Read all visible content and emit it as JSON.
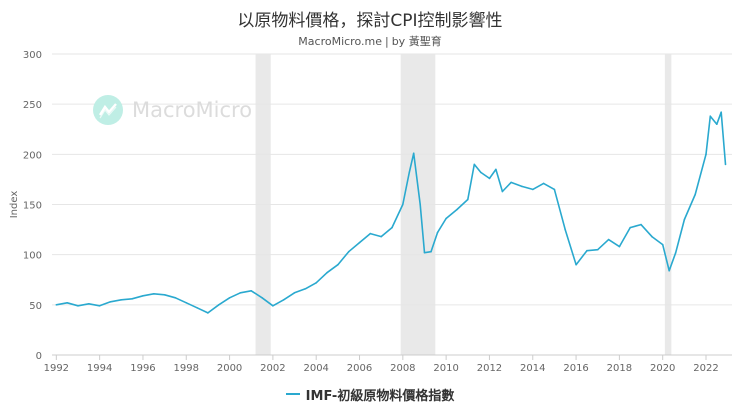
{
  "header": {
    "title": "以原物料價格，探討CPI控制影響性",
    "source": "MacroMicro.me",
    "separator": "|",
    "author": "by 黃聖育"
  },
  "watermark": {
    "text": "MacroMicro",
    "logo_color": "#bfeee5"
  },
  "colors": {
    "series": "#2aa9cf",
    "shade": "#e9e9e9",
    "grid": "#e6e6e6",
    "axis_text": "#666666"
  },
  "chart_data": {
    "type": "line",
    "title": "以原物料價格，探討CPI控制影響性",
    "xlabel": "",
    "ylabel": "Index",
    "xlim": [
      1991.8,
      2023.2
    ],
    "ylim": [
      0,
      300
    ],
    "yticks": [
      0,
      50,
      100,
      150,
      200,
      250,
      300
    ],
    "xticks": [
      1992,
      1994,
      1996,
      1998,
      2000,
      2002,
      2004,
      2006,
      2008,
      2010,
      2012,
      2014,
      2016,
      2018,
      2020,
      2022
    ],
    "grid": true,
    "legend_position": "bottom-center",
    "recession_shading": [
      [
        2001.2,
        2001.9
      ],
      [
        2007.9,
        2009.5
      ],
      [
        2020.1,
        2020.4
      ]
    ],
    "series": [
      {
        "name": "IMF-初級原物料價格指數",
        "x": [
          1992.0,
          1992.5,
          1993.0,
          1993.5,
          1994.0,
          1994.5,
          1995.0,
          1995.5,
          1996.0,
          1996.5,
          1997.0,
          1997.5,
          1998.0,
          1998.5,
          1999.0,
          1999.5,
          2000.0,
          2000.5,
          2001.0,
          2001.5,
          2002.0,
          2002.5,
          2003.0,
          2003.5,
          2004.0,
          2004.5,
          2005.0,
          2005.5,
          2006.0,
          2006.5,
          2007.0,
          2007.5,
          2008.0,
          2008.3,
          2008.5,
          2008.8,
          2009.0,
          2009.3,
          2009.6,
          2010.0,
          2010.5,
          2011.0,
          2011.3,
          2011.6,
          2012.0,
          2012.3,
          2012.6,
          2013.0,
          2013.5,
          2014.0,
          2014.5,
          2015.0,
          2015.5,
          2016.0,
          2016.5,
          2017.0,
          2017.5,
          2018.0,
          2018.5,
          2019.0,
          2019.5,
          2020.0,
          2020.3,
          2020.6,
          2021.0,
          2021.5,
          2022.0,
          2022.2,
          2022.5,
          2022.7,
          2022.9
        ],
        "values": [
          50,
          52,
          49,
          51,
          49,
          53,
          55,
          56,
          59,
          61,
          60,
          57,
          52,
          47,
          42,
          50,
          57,
          62,
          64,
          57,
          49,
          55,
          62,
          66,
          72,
          82,
          90,
          103,
          112,
          121,
          118,
          127,
          150,
          182,
          201,
          150,
          102,
          103,
          122,
          136,
          145,
          155,
          190,
          182,
          176,
          185,
          163,
          172,
          168,
          165,
          171,
          165,
          125,
          90,
          104,
          105,
          115,
          108,
          127,
          130,
          118,
          110,
          84,
          102,
          135,
          160,
          200,
          238,
          230,
          242,
          190
        ]
      }
    ]
  },
  "legend": {
    "label": "IMF-初級原物料價格指數"
  }
}
